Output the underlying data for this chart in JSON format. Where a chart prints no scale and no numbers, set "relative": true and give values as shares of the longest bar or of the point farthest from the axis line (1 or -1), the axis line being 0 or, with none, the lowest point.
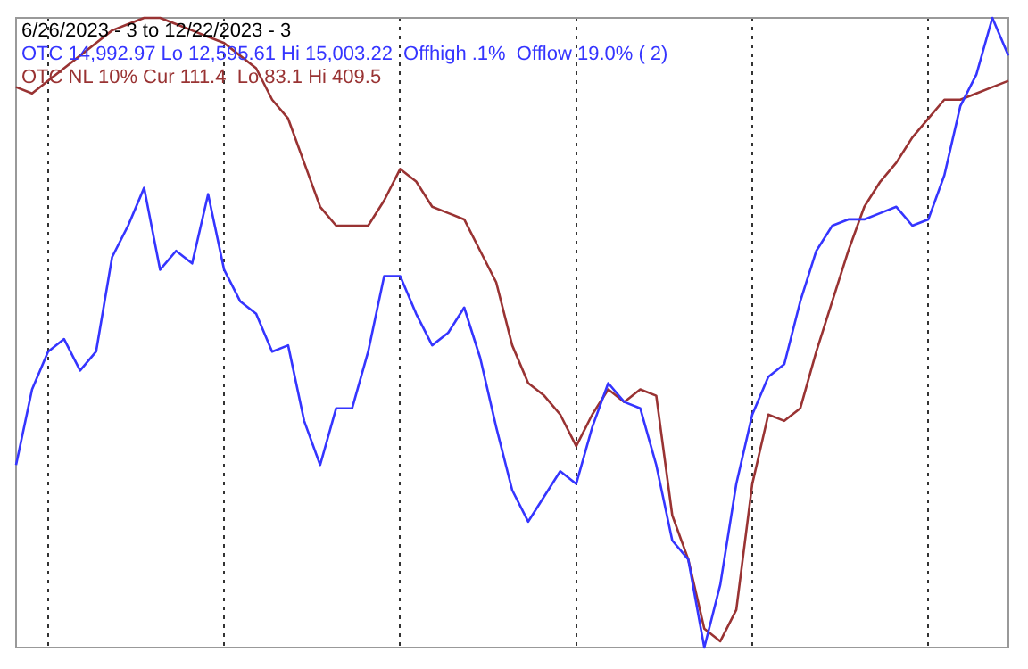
{
  "chart_data": {
    "type": "line",
    "title": "6/26/2023 - 3 to 12/22/2023 - 3",
    "relative": true,
    "grid": "x",
    "tick_labels": false,
    "marker": "none",
    "line_style": "solid",
    "categories": [
      null,
      null,
      null,
      null,
      null,
      null,
      null,
      null,
      null,
      null,
      null,
      null,
      null,
      null,
      null,
      null,
      null,
      null,
      null,
      null,
      null,
      null,
      null,
      null,
      null,
      null,
      null,
      null,
      null,
      null,
      null,
      null,
      null,
      null,
      null,
      null,
      null,
      null,
      null,
      null,
      null,
      null,
      null,
      null,
      null,
      null,
      null,
      null,
      null,
      null,
      null,
      null,
      null,
      null,
      null,
      null,
      null,
      null,
      null,
      null,
      null,
      null,
      null
    ],
    "series": [
      {
        "name": "OTC 14,992.97 Lo 12,595.61 Hi 15,003.22  Offhigh .1%  Offlow 19.0% ( 2)",
        "color": "#3535ff",
        "values": [
          0.29,
          0.41,
          0.47,
          0.49,
          0.44,
          0.47,
          0.62,
          0.67,
          0.73,
          0.6,
          0.63,
          0.61,
          0.72,
          0.6,
          0.55,
          0.53,
          0.47,
          0.48,
          0.36,
          0.29,
          0.38,
          0.38,
          0.47,
          0.59,
          0.59,
          0.53,
          0.48,
          0.5,
          0.54,
          0.46,
          0.35,
          0.25,
          0.2,
          0.24,
          0.28,
          0.26,
          0.35,
          0.42,
          0.39,
          0.38,
          0.29,
          0.17,
          0.14,
          0,
          0.1,
          0.26,
          0.37,
          0.43,
          0.45,
          0.55,
          0.63,
          0.67,
          0.68,
          0.68,
          0.69,
          0.7,
          0.67,
          0.68,
          0.75,
          0.86,
          0.91,
          1,
          0.94
        ]
      },
      {
        "name": "OTC NL 10% Cur 111.4  Lo 83.1 Hi 409.5",
        "color": "#993333",
        "values": [
          0.89,
          0.88,
          0.9,
          0.92,
          0.94,
          0.96,
          0.98,
          0.99,
          1,
          1,
          0.99,
          0.98,
          0.97,
          0.96,
          0.94,
          0.92,
          0.87,
          0.84,
          0.77,
          0.7,
          0.67,
          0.67,
          0.67,
          0.71,
          0.76,
          0.74,
          0.7,
          0.69,
          0.68,
          0.63,
          0.58,
          0.48,
          0.42,
          0.4,
          0.37,
          0.32,
          0.37,
          0.41,
          0.39,
          0.41,
          0.4,
          0.21,
          0.14,
          0.03,
          0.01,
          0.06,
          0.26,
          0.37,
          0.36,
          0.38,
          0.47,
          0.55,
          0.63,
          0.7,
          0.74,
          0.77,
          0.81,
          0.84,
          0.87,
          0.87,
          0.88,
          0.89,
          0.9
        ]
      }
    ]
  }
}
